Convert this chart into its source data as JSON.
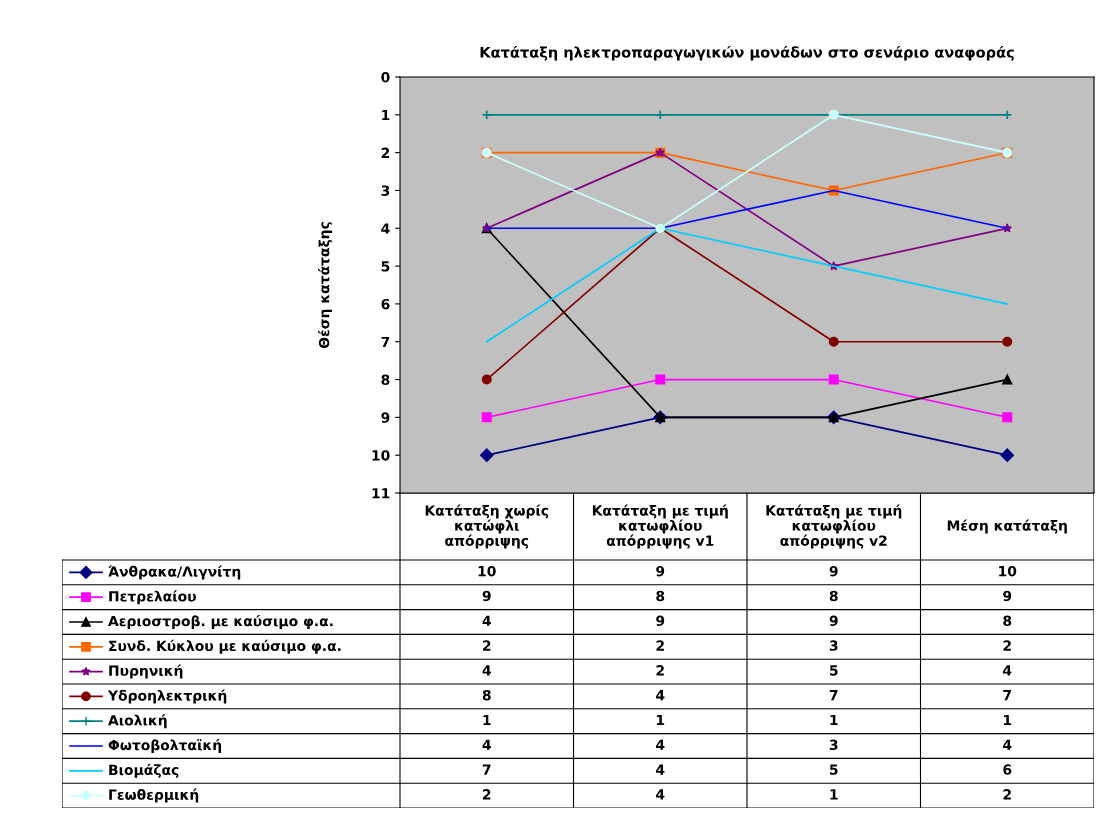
{
  "chart_data": {
    "type": "line",
    "title": "Κατάταξη ηλεκτροπαραγωγικών μονάδων στο σενάριο αναφοράς",
    "ylabel": "Θέση κατάταξης",
    "categories": [
      "Κατάταξη χωρίς\nκατώφλι\nαπόρριψης",
      "Κατάταξη με τιμή\nκατωφλίου\nαπόρριψης v1",
      "Κατάταξη με τιμή\nκατωφλίου\nαπόρριψης v2",
      "Μέση κατάταξη"
    ],
    "ylim": [
      11,
      0
    ],
    "yticks": [
      0,
      1,
      2,
      3,
      4,
      5,
      6,
      7,
      8,
      9,
      10,
      11
    ],
    "grid": false,
    "legend": "bottom",
    "data_labels": true,
    "series": [
      {
        "name": "Άνθρακα/Λιγνίτη",
        "color": "#000080",
        "marker": "diamond",
        "values": [
          10,
          9,
          9,
          10
        ]
      },
      {
        "name": "Πετρελαίου",
        "color": "#ff00ff",
        "marker": "square",
        "values": [
          9,
          8,
          8,
          9
        ]
      },
      {
        "name": "Αεριοστροβ. με καύσιμο φ.α.",
        "color": "#000000",
        "marker": "triangle",
        "values": [
          4,
          9,
          9,
          8
        ]
      },
      {
        "name": "Συνδ. Κύκλου με καύσιμο φ.α.",
        "color": "#ff6600",
        "marker": "square",
        "values": [
          2,
          2,
          3,
          2
        ]
      },
      {
        "name": "Πυρηνική",
        "color": "#800080",
        "marker": "star",
        "values": [
          4,
          2,
          5,
          4
        ]
      },
      {
        "name": "Υδροηλεκτρική",
        "color": "#800000",
        "marker": "circle",
        "values": [
          8,
          4,
          7,
          7
        ]
      },
      {
        "name": "Αιολική",
        "color": "#008080",
        "marker": "cross",
        "values": [
          1,
          1,
          1,
          1
        ]
      },
      {
        "name": "Φωτοβολταϊκή",
        "color": "#0000ff",
        "marker": "none",
        "values": [
          4,
          4,
          3,
          4
        ]
      },
      {
        "name": "Βιομάζας",
        "color": "#00ccff",
        "marker": "none",
        "values": [
          7,
          4,
          5,
          6
        ]
      },
      {
        "name": "Γεωθερμική",
        "color": "#ccffff",
        "marker": "circle",
        "values": [
          2,
          4,
          1,
          2
        ]
      }
    ]
  }
}
